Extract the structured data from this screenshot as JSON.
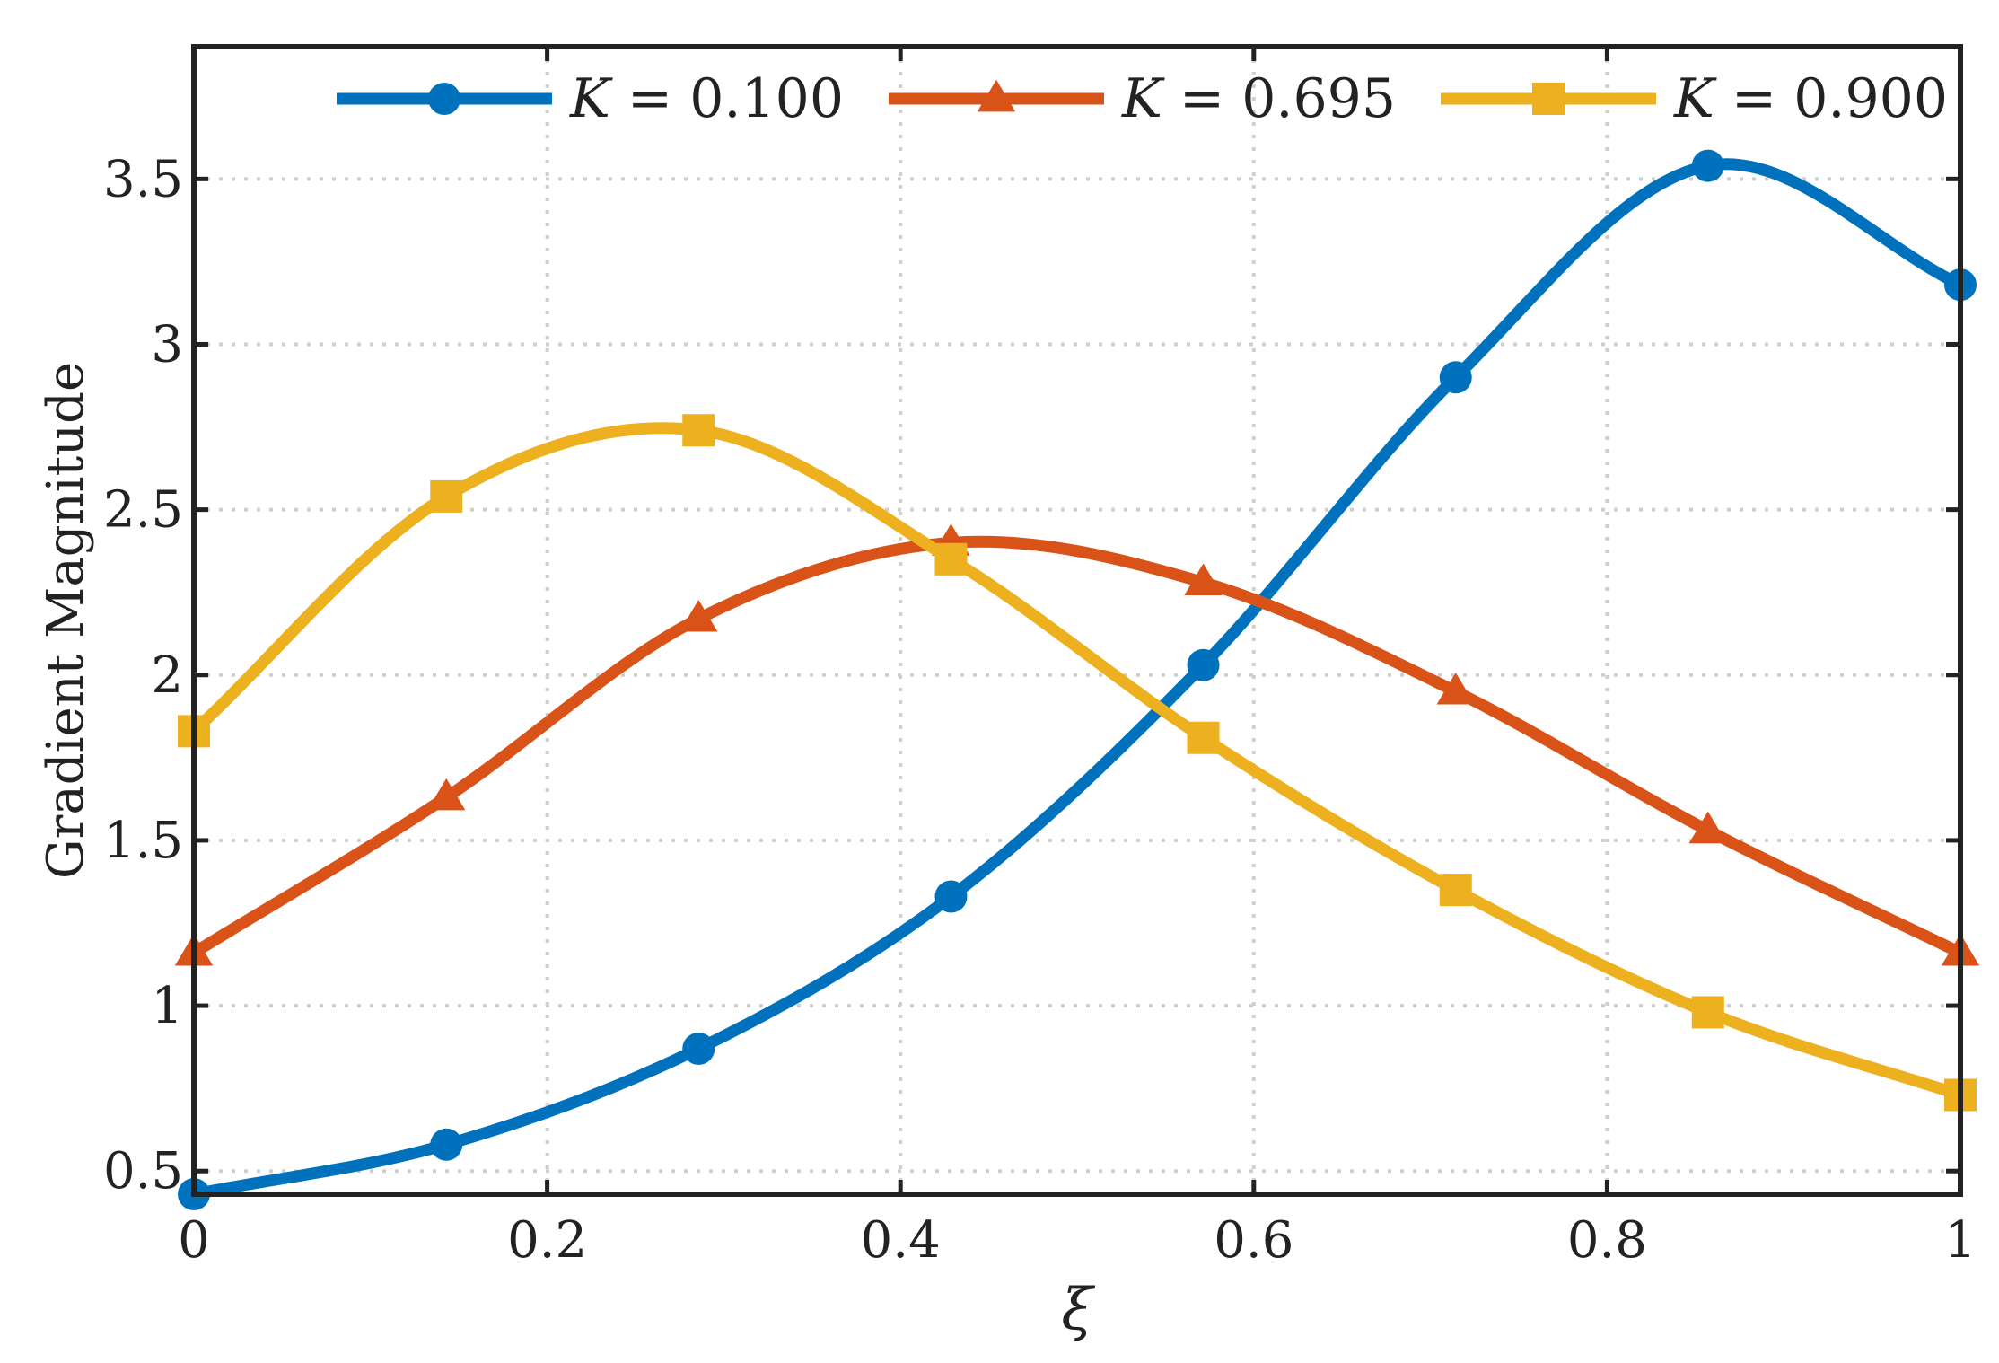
{
  "chart_data": {
    "type": "line",
    "xlabel": "ξ",
    "ylabel": "Gradient Magnitude",
    "xlim": [
      0,
      1
    ],
    "ylim": [
      0.43,
      3.9
    ],
    "xticks": [
      0,
      0.2,
      0.4,
      0.6,
      0.8,
      1
    ],
    "xtick_labels": [
      "0",
      "0.2",
      "0.4",
      "0.6",
      "0.8",
      "1"
    ],
    "yticks": [
      0.5,
      1,
      1.5,
      2,
      2.5,
      3,
      3.5
    ],
    "ytick_labels": [
      "0.5",
      "1",
      "1.5",
      "2",
      "2.5",
      "3",
      "3.5"
    ],
    "grid": true,
    "legend_position": "top",
    "x": [
      0,
      0.1429,
      0.2857,
      0.4286,
      0.5714,
      0.7143,
      0.8571,
      1
    ],
    "series": [
      {
        "name": "K = 0.100",
        "label_var": "K",
        "label_value": "0.100",
        "color": "#0072BD",
        "marker": "circle",
        "values": [
          0.43,
          0.58,
          0.87,
          1.33,
          2.03,
          2.9,
          3.54,
          3.18
        ]
      },
      {
        "name": "K = 0.695",
        "label_var": "K",
        "label_value": "0.695",
        "color": "#D95319",
        "marker": "triangle",
        "values": [
          1.16,
          1.63,
          2.17,
          2.4,
          2.28,
          1.95,
          1.53,
          1.16
        ]
      },
      {
        "name": "K = 0.900",
        "label_var": "K",
        "label_value": "0.900",
        "color": "#EDB120",
        "marker": "square",
        "values": [
          1.83,
          2.54,
          2.74,
          2.35,
          1.81,
          1.35,
          0.98,
          0.73
        ]
      }
    ]
  }
}
